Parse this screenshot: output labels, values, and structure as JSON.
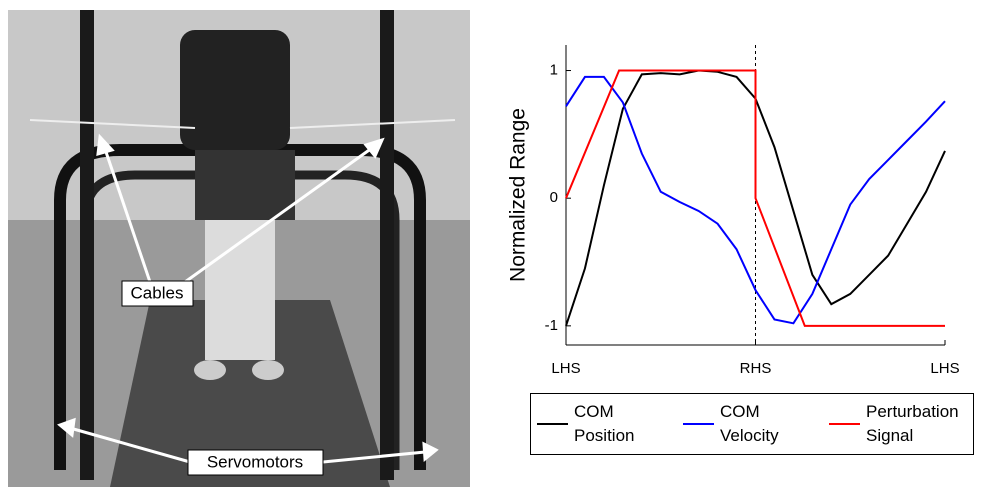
{
  "photo": {
    "labels": [
      "Cables",
      "Servomotors"
    ]
  },
  "chart_data": {
    "type": "line",
    "ylabel": "Normalized Range",
    "xlim": [
      0,
      100
    ],
    "ylim": [
      -1.15,
      1.2
    ],
    "xticks": [
      {
        "value": 0,
        "label": "LHS"
      },
      {
        "value": 50,
        "label": "RHS"
      },
      {
        "value": 100,
        "label": "LHS"
      }
    ],
    "yticks": [
      -1,
      0,
      1
    ],
    "vline": 50,
    "series": [
      {
        "name": "COM Position",
        "color": "#000000",
        "x": [
          0,
          5,
          10,
          15,
          20,
          25,
          30,
          35,
          40,
          45,
          50,
          55,
          60,
          65,
          70,
          75,
          80,
          85,
          90,
          95,
          100
        ],
        "values": [
          -1,
          -0.55,
          0.1,
          0.7,
          0.97,
          0.98,
          0.97,
          1.0,
          0.99,
          0.95,
          0.78,
          0.4,
          -0.1,
          -0.6,
          -0.83,
          -0.75,
          -0.6,
          -0.45,
          -0.2,
          0.05,
          0.37
        ]
      },
      {
        "name": "COM Velocity",
        "color": "#0000ff",
        "x": [
          0,
          5,
          10,
          15,
          20,
          25,
          30,
          35,
          40,
          45,
          50,
          55,
          60,
          65,
          70,
          75,
          80,
          85,
          90,
          95,
          100
        ],
        "values": [
          0.72,
          0.95,
          0.95,
          0.75,
          0.35,
          0.05,
          -0.03,
          -0.1,
          -0.2,
          -0.4,
          -0.72,
          -0.95,
          -0.98,
          -0.75,
          -0.4,
          -0.05,
          0.15,
          0.3,
          0.45,
          0.6,
          0.76
        ]
      },
      {
        "name": "Perturbation Signal",
        "color": "#ff0000",
        "x": [
          0,
          14,
          50,
          50,
          63,
          100
        ],
        "values": [
          0,
          1,
          1,
          0,
          -1,
          -1
        ]
      }
    ]
  }
}
